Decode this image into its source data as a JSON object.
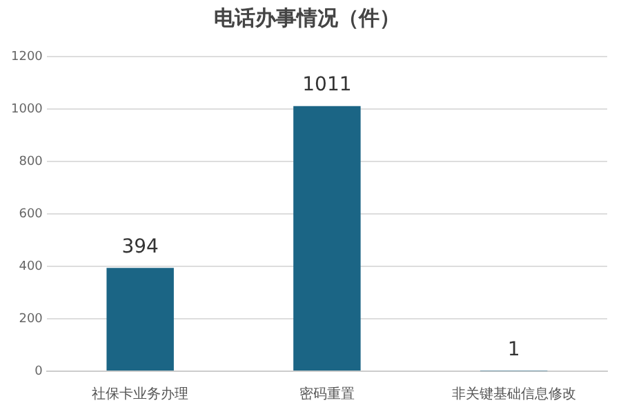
{
  "chart_data": {
    "type": "bar",
    "title": "电话办事情况（件）",
    "categories": [
      "社保卡业务办理",
      "密码重置",
      "非关键基础信息修改"
    ],
    "values": [
      394,
      1011,
      1
    ],
    "color": "#1b6585",
    "ylim": [
      0,
      1200
    ],
    "yticks": [
      0,
      200,
      400,
      600,
      800,
      1000,
      1200
    ],
    "grid": "y",
    "data_labels": true
  }
}
